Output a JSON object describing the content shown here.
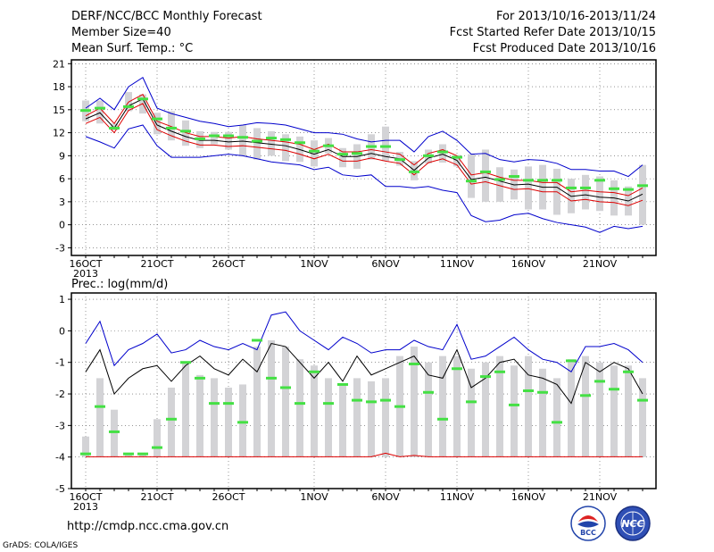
{
  "header": {
    "title": "DERF/NCC/BCC Monthly Forecast",
    "member_size": "Member Size=40",
    "variable1": "Mean Surf. Temp.: °C",
    "period": "For 2013/10/16-2013/11/24",
    "started": "Fcst Started Refer Date 2013/10/15",
    "produced": "Fcst Produced Date 2013/10/16"
  },
  "footer": {
    "url": "http://cmdp.ncc.cma.gov.cn",
    "grads": "GrADS: COLA/IGES",
    "logo_bcc": "BCC",
    "logo_ncc": "NCC"
  },
  "colors": {
    "box": "#d3d3d6",
    "median": "#44e044",
    "bound": "#0000cc",
    "ci": "#dd0000",
    "mean": "#000000",
    "grid": "#555555"
  },
  "chart_data": [
    {
      "type": "line",
      "title": "Mean Surf. Temp.: °C",
      "x_tick_labels": [
        "16OCT",
        "21OCT",
        "26OCT",
        "1NOV",
        "6NOV",
        "11NOV",
        "16NOV",
        "21NOV"
      ],
      "x_tick_index": [
        0,
        5,
        10,
        16,
        21,
        26,
        31,
        36
      ],
      "year_label": "2013",
      "ylim": [
        -4,
        21.5
      ],
      "yticks": [
        -3,
        0,
        3,
        6,
        9,
        12,
        15,
        18,
        21
      ],
      "grid": true,
      "series": [
        {
          "name": "upper",
          "values": [
            15.2,
            16.5,
            15.0,
            18.0,
            19.2,
            15.2,
            14.5,
            14.0,
            13.5,
            13.2,
            12.8,
            13.0,
            13.3,
            13.2,
            13.0,
            12.5,
            12.0,
            12.0,
            11.8,
            11.2,
            10.8,
            11.0,
            11.0,
            9.5,
            11.5,
            12.2,
            11.0,
            9.2,
            9.3,
            8.5,
            8.2,
            8.5,
            8.4,
            8.0,
            7.2,
            7.2,
            7.0,
            7.0,
            6.3,
            7.8
          ]
        },
        {
          "name": "ci_upper",
          "values": [
            14.2,
            15.2,
            13.2,
            16.0,
            17.0,
            13.5,
            12.8,
            12.0,
            11.5,
            11.5,
            11.3,
            11.5,
            11.2,
            11.0,
            10.8,
            10.5,
            9.8,
            10.5,
            9.5,
            9.5,
            9.8,
            9.5,
            9.2,
            7.8,
            9.3,
            9.8,
            9.0,
            6.5,
            6.8,
            6.2,
            5.8,
            5.8,
            5.5,
            5.5,
            4.3,
            4.5,
            4.3,
            4.2,
            3.8,
            4.8
          ]
        },
        {
          "name": "mean",
          "values": [
            13.8,
            14.6,
            12.6,
            15.5,
            16.4,
            13.0,
            12.2,
            11.5,
            11.0,
            11.0,
            10.8,
            10.9,
            10.7,
            10.5,
            10.3,
            9.8,
            9.2,
            9.8,
            8.9,
            8.9,
            9.3,
            8.9,
            8.6,
            7.1,
            8.7,
            9.2,
            8.4,
            5.9,
            6.2,
            5.7,
            5.2,
            5.3,
            4.9,
            4.9,
            3.7,
            3.9,
            3.6,
            3.5,
            3.1,
            4.0
          ]
        },
        {
          "name": "ci_lower",
          "values": [
            13.2,
            14.0,
            12.0,
            14.9,
            15.8,
            12.4,
            11.6,
            10.9,
            10.4,
            10.4,
            10.2,
            10.3,
            10.1,
            9.9,
            9.7,
            9.2,
            8.6,
            9.2,
            8.3,
            8.3,
            8.7,
            8.3,
            8.0,
            6.5,
            8.1,
            8.6,
            7.8,
            5.3,
            5.6,
            5.1,
            4.6,
            4.7,
            4.3,
            4.3,
            3.1,
            3.3,
            3.0,
            2.9,
            2.5,
            3.2
          ]
        },
        {
          "name": "lower",
          "values": [
            11.5,
            10.8,
            10.0,
            12.5,
            13.0,
            10.3,
            8.8,
            8.8,
            8.8,
            9.0,
            9.2,
            9.0,
            8.6,
            8.2,
            8.0,
            7.8,
            7.2,
            7.5,
            6.5,
            6.3,
            6.5,
            5.0,
            5.0,
            4.8,
            5.0,
            4.5,
            4.2,
            1.2,
            0.4,
            0.6,
            1.3,
            1.5,
            0.8,
            0.3,
            0.0,
            -0.3,
            -1.0,
            -0.2,
            -0.5,
            -0.2
          ]
        }
      ],
      "boxes": {
        "name": "members",
        "upper": [
          16.2,
          16.2,
          13.2,
          17.3,
          17.0,
          14.6,
          14.8,
          13.6,
          12.2,
          12.1,
          12.1,
          13.0,
          12.6,
          12.2,
          11.8,
          11.5,
          11.0,
          11.3,
          10.0,
          10.5,
          11.8,
          12.8,
          9.5,
          8.3,
          9.8,
          10.5,
          9.1,
          9.2,
          9.8,
          7.5,
          7.2,
          7.6,
          7.8,
          7.3,
          6.0,
          6.5,
          6.3,
          5.8,
          5.0,
          7.8
        ],
        "lower": [
          13.5,
          13.2,
          12.3,
          14.8,
          14.5,
          11.8,
          11.0,
          10.3,
          10.0,
          10.5,
          9.8,
          9.0,
          8.5,
          9.0,
          8.3,
          8.2,
          7.6,
          9.3,
          7.5,
          7.3,
          8.5,
          8.3,
          7.7,
          5.8,
          8.0,
          8.1,
          7.6,
          3.5,
          3.0,
          3.0,
          3.3,
          2.0,
          2.0,
          1.3,
          1.5,
          2.0,
          1.8,
          1.2,
          1.2,
          0.0
        ],
        "median": [
          14.9,
          15.2,
          12.6,
          15.4,
          16.4,
          13.8,
          12.6,
          12.2,
          11.2,
          11.6,
          11.6,
          11.4,
          10.9,
          11.3,
          11.1,
          10.7,
          9.6,
          10.3,
          9.2,
          9.3,
          10.2,
          10.2,
          8.5,
          6.9,
          9.0,
          9.5,
          8.8,
          5.7,
          6.9,
          5.9,
          6.3,
          5.8,
          5.8,
          5.8,
          4.8,
          4.8,
          5.8,
          4.7,
          4.6,
          5.1
        ]
      }
    },
    {
      "type": "line",
      "title": "Prec.: log(mm/d)",
      "x_tick_labels": [
        "16OCT",
        "21OCT",
        "26OCT",
        "1NOV",
        "6NOV",
        "11NOV",
        "16NOV",
        "21NOV"
      ],
      "x_tick_index": [
        0,
        5,
        10,
        16,
        21,
        26,
        31,
        36
      ],
      "year_label": "2013",
      "ylim": [
        -5,
        1.2
      ],
      "yticks": [
        -5,
        -4,
        -3,
        -2,
        -1,
        0,
        1
      ],
      "grid": true,
      "series": [
        {
          "name": "upper",
          "values": [
            -0.4,
            0.3,
            -1.1,
            -0.6,
            -0.4,
            -0.1,
            -0.7,
            -0.6,
            -0.3,
            -0.5,
            -0.6,
            -0.4,
            -0.6,
            0.5,
            0.6,
            0.0,
            -0.3,
            -0.6,
            -0.2,
            -0.4,
            -0.7,
            -0.6,
            -0.6,
            -0.3,
            -0.5,
            -0.6,
            0.2,
            -0.9,
            -0.8,
            -0.5,
            -0.2,
            -0.6,
            -0.9,
            -1.0,
            -1.3,
            -0.5,
            -0.5,
            -0.4,
            -0.6,
            -1.0
          ]
        },
        {
          "name": "mean",
          "values": [
            -1.3,
            -0.6,
            -2.0,
            -1.5,
            -1.2,
            -1.1,
            -1.6,
            -1.1,
            -0.8,
            -1.2,
            -1.4,
            -0.9,
            -1.3,
            -0.4,
            -0.5,
            -1.0,
            -1.5,
            -1.0,
            -1.6,
            -0.8,
            -1.4,
            -1.2,
            -1.0,
            -0.8,
            -1.4,
            -1.5,
            -0.6,
            -1.8,
            -1.5,
            -1.0,
            -0.9,
            -1.4,
            -1.5,
            -1.7,
            -2.3,
            -1.0,
            -1.3,
            -1.0,
            -1.2,
            -2.0
          ]
        },
        {
          "name": "ci_lower",
          "values": [
            -3.99,
            -3.99,
            -3.99,
            -3.99,
            -3.99,
            -3.99,
            -3.99,
            -3.99,
            -3.99,
            -3.99,
            -3.99,
            -3.99,
            -3.99,
            -3.99,
            -3.99,
            -3.99,
            -3.99,
            -3.99,
            -3.99,
            -3.99,
            -3.99,
            -3.88,
            -3.99,
            -3.95,
            -3.99,
            -3.99,
            -3.99,
            -3.99,
            -3.99,
            -3.99,
            -3.99,
            -3.99,
            -3.99,
            -3.99,
            -3.99,
            -3.99,
            -3.99,
            -3.99,
            -3.99,
            -3.99
          ]
        }
      ],
      "boxes": {
        "name": "members",
        "upper": [
          -3.35,
          -1.5,
          -2.5,
          -3.9,
          -3.9,
          -2.8,
          -1.8,
          -1.0,
          -1.4,
          -1.5,
          -1.8,
          -1.7,
          -0.5,
          -0.3,
          -0.5,
          -0.9,
          -1.1,
          -1.5,
          -1.7,
          -1.5,
          -1.6,
          -1.5,
          -0.8,
          -0.5,
          -1.0,
          -0.8,
          -0.8,
          -1.2,
          -1.0,
          -0.8,
          -1.1,
          -0.8,
          -1.2,
          -1.5,
          -0.9,
          -0.8,
          -1.0,
          -1.1,
          -1.1,
          -1.5
        ],
        "lower": [
          -4,
          -4,
          -4,
          -4,
          -4,
          -4,
          -4,
          -4,
          -4,
          -4,
          -4,
          -4,
          -4,
          -4,
          -4,
          -4,
          -4,
          -4,
          -4,
          -4,
          -4,
          -4,
          -4,
          -4,
          -4,
          -4,
          -4,
          -4,
          -4,
          -4,
          -4,
          -4,
          -4,
          -4,
          -4,
          -4,
          -4,
          -4,
          -4,
          -4
        ],
        "median": [
          -3.9,
          -2.4,
          -3.2,
          -3.9,
          -3.9,
          -3.7,
          -2.8,
          -1.0,
          -1.5,
          -2.3,
          -2.3,
          -2.9,
          -0.3,
          -1.5,
          -1.8,
          -2.3,
          -1.3,
          -2.3,
          -1.7,
          -2.2,
          -2.25,
          -2.2,
          -2.4,
          -1.05,
          -1.95,
          -2.8,
          -1.2,
          -2.25,
          -1.45,
          -1.3,
          -2.35,
          -1.9,
          -1.95,
          -2.9,
          -0.95,
          -2.05,
          -1.6,
          -1.85,
          -1.3,
          -2.2
        ]
      }
    }
  ]
}
